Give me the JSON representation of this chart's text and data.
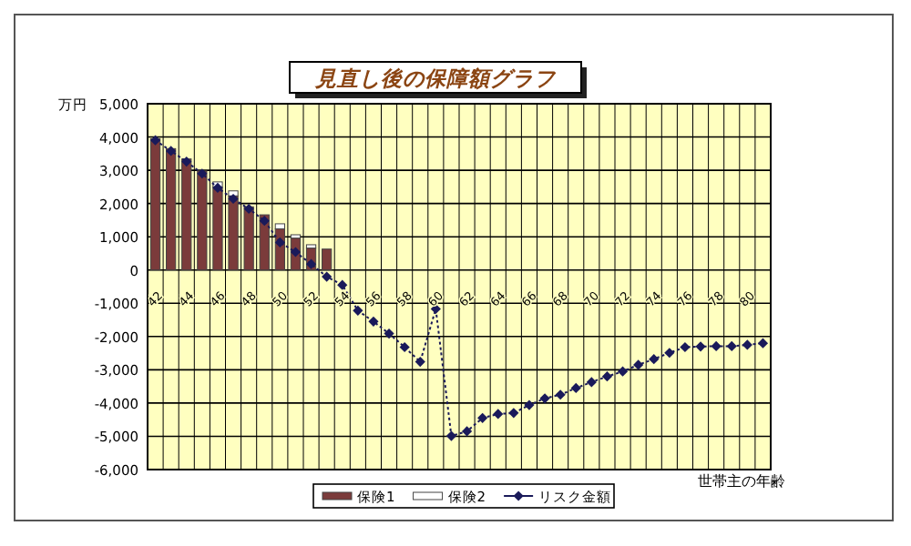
{
  "chart_data": {
    "type": "bar",
    "title": "見直し後の保障額グラフ",
    "xlabel": "世帯主の年齢",
    "ylabel": "万円",
    "categories": [
      "42",
      null,
      "44",
      null,
      "46",
      null,
      "48",
      null,
      "50",
      null,
      "52",
      null,
      "54",
      null,
      "56",
      null,
      "58",
      null,
      "60",
      null,
      "62",
      null,
      "64",
      null,
      "66",
      null,
      "68",
      null,
      "70",
      null,
      "72",
      null,
      "74",
      null,
      "76",
      null,
      "78",
      null,
      "80",
      null
    ],
    "stacked": true,
    "series": [
      {
        "name": "保険1",
        "color": "#7b3b3b",
        "values": [
          3950,
          3650,
          3340,
          2980,
          2500,
          2230,
          1900,
          1660,
          1240,
          960,
          660,
          630,
          null,
          null,
          null,
          null,
          null,
          null,
          null,
          null,
          null,
          null,
          null,
          null,
          null,
          null,
          null,
          null,
          null,
          null,
          null,
          null,
          null,
          null,
          null,
          null,
          null,
          null,
          null,
          null
        ]
      },
      {
        "name": "保険2",
        "color": "#ffffff",
        "values": [
          0,
          0,
          0,
          0,
          150,
          150,
          0,
          0,
          150,
          100,
          100,
          0,
          null,
          null,
          null,
          null,
          null,
          null,
          null,
          null,
          null,
          null,
          null,
          null,
          null,
          null,
          null,
          null,
          null,
          null,
          null,
          null,
          null,
          null,
          null,
          null,
          null,
          null,
          null,
          null
        ]
      },
      {
        "name": "リスク金額",
        "type": "line",
        "color": "#1a1a5a",
        "values": [
          3900,
          3580,
          3260,
          2900,
          2470,
          2140,
          1840,
          1480,
          830,
          540,
          180,
          -200,
          -450,
          -1220,
          -1550,
          -1910,
          -2320,
          -2760,
          -1170,
          -4990,
          -4850,
          -4450,
          -4330,
          -4300,
          -4060,
          -3860,
          -3750,
          -3550,
          -3370,
          -3200,
          -3050,
          -2850,
          -2680,
          -2490,
          -2320,
          -2300,
          -2290,
          -2290,
          -2250,
          -2200
        ]
      }
    ],
    "ylim": [
      -6000,
      5000
    ],
    "yticks": [
      {
        "value": -6000,
        "label": "-6,000"
      },
      {
        "value": -5000,
        "label": "-5,000"
      },
      {
        "value": -4000,
        "label": "-4,000"
      },
      {
        "value": -3000,
        "label": "-3,000"
      },
      {
        "value": -2000,
        "label": "-2,000"
      },
      {
        "value": -1000,
        "label": "-1,000"
      },
      0,
      {
        "value": 1000,
        "label": "1,000"
      },
      {
        "value": 2000,
        "label": "2,000"
      },
      {
        "value": 3000,
        "label": "3,000"
      },
      {
        "value": 4000,
        "label": "4,000"
      },
      {
        "value": 5000,
        "label": "5,000"
      }
    ],
    "grid": true,
    "legend": "bottom",
    "marker": "diamond",
    "line_style": "dotted"
  }
}
